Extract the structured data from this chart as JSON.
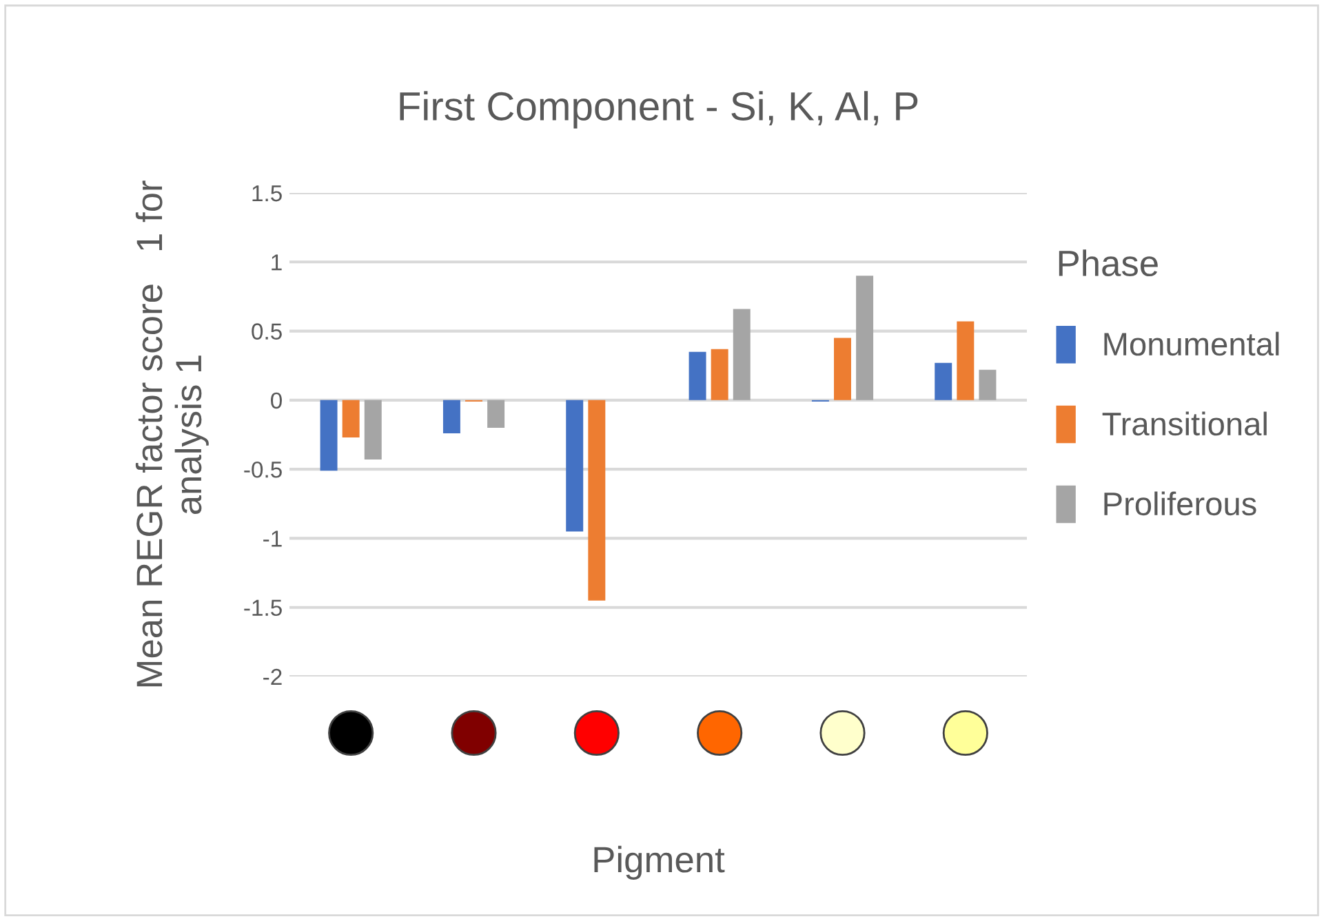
{
  "chart_data": {
    "type": "bar",
    "title": "First Component - Si, K, Al, P",
    "xlabel": "Pigment",
    "ylabel": "Mean REGR factor score   1 for\nanalysis 1",
    "legend_title": "Phase",
    "categories": [
      null,
      null,
      null,
      null,
      null,
      null
    ],
    "series": [
      {
        "name": "Monumental",
        "color": "#4472c4",
        "values": [
          -0.51,
          -0.24,
          -0.95,
          0.35,
          -0.01,
          0.27
        ]
      },
      {
        "name": "Transitional",
        "color": "#ed7d31",
        "values": [
          -0.27,
          -0.01,
          -1.45,
          0.37,
          0.45,
          0.57
        ]
      },
      {
        "name": "Proliferous",
        "color": "#a5a5a5",
        "values": [
          -0.43,
          -0.2,
          null,
          0.66,
          0.9,
          0.22
        ]
      }
    ],
    "ylim": [
      -2,
      1.5
    ],
    "yticks": [
      -2,
      -1.5,
      -1,
      -0.5,
      0,
      0.5,
      1,
      1.5
    ],
    "grid": "y",
    "legend": "right"
  }
}
